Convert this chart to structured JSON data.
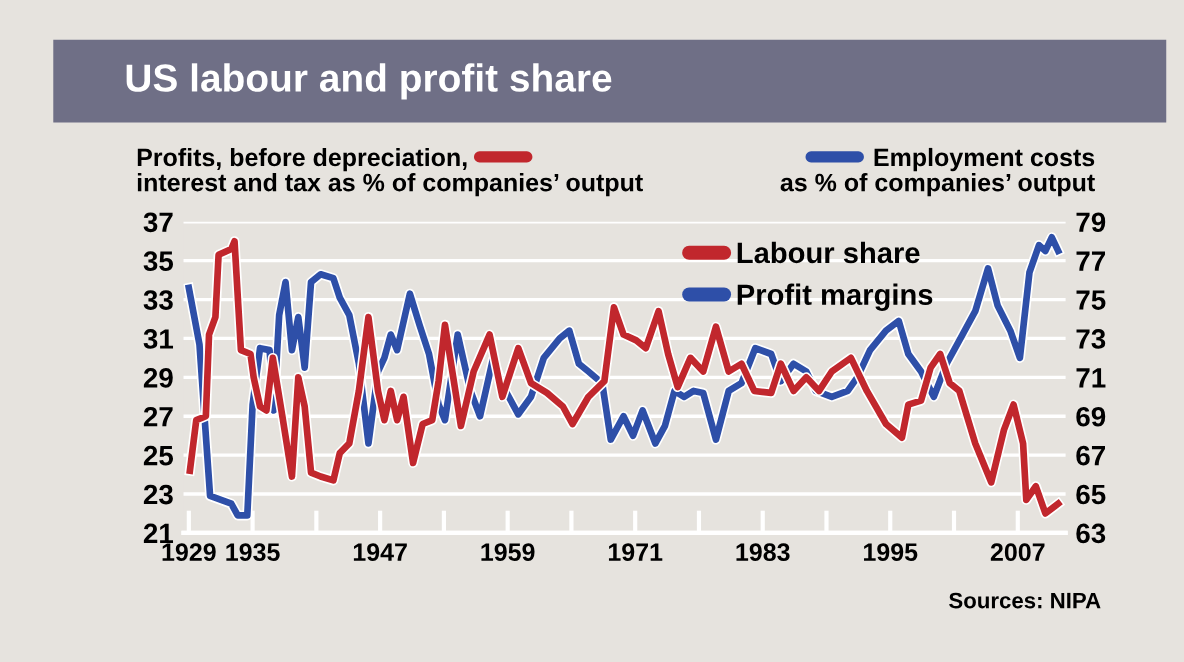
{
  "chart_data": {
    "type": "line",
    "title": "US labour and profit share",
    "ylabel": "Profits, before depreciation,\ninterest and tax as % of companies’ output",
    "y2label": "Employment costs\nas % of companies’ output",
    "annotations": [
      "Sources: NIPA"
    ],
    "xlim": [
      1928.5,
      2011.5
    ],
    "xticks": [
      1929,
      1935,
      {
        "value": 1941,
        "label": null
      },
      1947,
      {
        "value": 1953,
        "label": null
      },
      1959,
      {
        "value": 1965,
        "label": null
      },
      1971,
      {
        "value": 1977,
        "label": null
      },
      1983,
      {
        "value": 1989,
        "label": null
      },
      1995,
      {
        "value": 2001,
        "label": null
      },
      2007
    ],
    "ylim": [
      21,
      37
    ],
    "yticks": [
      21,
      23,
      25,
      27,
      29,
      31,
      33,
      35,
      37
    ],
    "y2lim": [
      63,
      79
    ],
    "y2ticks": [
      63,
      65,
      67,
      69,
      71,
      73,
      75,
      77,
      79
    ],
    "grid": "y",
    "legend": "top right",
    "line_style": "solid",
    "series": [
      {
        "name": "Labour share",
        "color": "#c1272d",
        "axis": "y2",
        "x": [
          1929.1,
          1929.7,
          1930.6,
          1930.9,
          1931.5,
          1931.8,
          1933,
          1933.3,
          1933.9,
          1934.8,
          1935.1,
          1935.7,
          1936.3,
          1936.9,
          1937.8,
          1938.7,
          1939.3,
          1939.9,
          1940.5,
          1941.4,
          1942.6,
          1943.2,
          1944.1,
          1945,
          1945.9,
          1946.8,
          1947.4,
          1948,
          1948.6,
          1949.2,
          1950.1,
          1951,
          1951.9,
          1952.5,
          1953.1,
          1954.6,
          1955.8,
          1957.3,
          1958.5,
          1960,
          1961.2,
          1962.7,
          1964.2,
          1965.1,
          1966.6,
          1968.1,
          1969,
          1969.9,
          1971.1,
          1972,
          1973.2,
          1974.1,
          1975,
          1976.2,
          1977.4,
          1978.6,
          1979.8,
          1981,
          1982.2,
          1983.8,
          1984.7,
          1985.9,
          1987.1,
          1988.3,
          1989.5,
          1991.3,
          1992.8,
          1994.6,
          1996.1,
          1996.7,
          1997.9,
          1998.8,
          1999.7,
          2000.6,
          2001.5,
          2003,
          2004.5,
          2005.7,
          2006.6,
          2007.5,
          2007.8,
          2008.7,
          2009.6,
          2010.8
        ],
        "values": [
          66.2,
          68.8,
          69,
          73.2,
          74.1,
          77.3,
          77.6,
          78,
          72.4,
          72.2,
          71,
          69.5,
          69.3,
          72,
          69,
          65.9,
          71,
          69.5,
          66.1,
          65.9,
          65.7,
          67.1,
          67.6,
          70.3,
          74.1,
          70.3,
          68.8,
          70.3,
          68.8,
          70,
          66.6,
          68.6,
          68.8,
          70.8,
          73.7,
          68.5,
          71.3,
          73.2,
          70,
          72.5,
          70.7,
          70.2,
          69.5,
          68.6,
          70,
          70.8,
          74.6,
          73.2,
          72.9,
          72.5,
          74.4,
          72.2,
          70.5,
          72,
          71.3,
          73.6,
          71.3,
          71.7,
          70.3,
          70.2,
          71.7,
          70.3,
          71,
          70.3,
          71.3,
          72,
          70.3,
          68.6,
          67.9,
          69.6,
          69.8,
          71.5,
          72.2,
          70.7,
          70.3,
          67.6,
          65.6,
          68.3,
          69.6,
          67.6,
          64.7,
          65.4,
          64,
          64.5
        ]
      },
      {
        "name": "Profit margins",
        "color": "#2e4fa8",
        "x": [
          1929,
          1930,
          1931,
          1933,
          1933.6,
          1934.5,
          1935,
          1935.7,
          1936.6,
          1937,
          1937.5,
          1938.1,
          1938.7,
          1939.3,
          1939.9,
          1940.5,
          1941.4,
          1942.6,
          1943.2,
          1944.1,
          1945,
          1945.9,
          1946.8,
          1947.4,
          1948,
          1948.6,
          1949.8,
          1950.7,
          1951.6,
          1952.5,
          1953.1,
          1954.3,
          1955.5,
          1956.4,
          1957.6,
          1958.8,
          1960,
          1961.2,
          1962.4,
          1963.9,
          1964.8,
          1965.7,
          1966.6,
          1967.9,
          1968.7,
          1969.9,
          1970.8,
          1971.7,
          1972.9,
          1973.8,
          1974.7,
          1975.6,
          1976.5,
          1977.4,
          1978.6,
          1979.8,
          1981,
          1982.3,
          1983.8,
          1984.7,
          1985.9,
          1987.1,
          1988,
          1989.5,
          1991,
          1991.9,
          1993.1,
          1994.6,
          1995.8,
          1996.7,
          1997.9,
          1999.1,
          2000.3,
          2001.8,
          2003,
          2004.2,
          2005.1,
          2006.3,
          2007.2,
          2008.1,
          2009,
          2009.6,
          2010.2,
          2010.8
        ],
        "values": [
          33.6,
          30.7,
          22.9,
          22.5,
          21.9,
          21.9,
          27.6,
          30.5,
          30.4,
          27.3,
          32.2,
          33.9,
          30.4,
          32.1,
          29.5,
          33.9,
          34.3,
          34.1,
          33.1,
          32.2,
          29.7,
          25.6,
          29.3,
          30,
          31.2,
          30.4,
          33.3,
          31.7,
          30.2,
          27.6,
          26.8,
          31.2,
          28.3,
          27,
          29.9,
          28.3,
          27.1,
          28,
          30,
          31,
          31.4,
          29.7,
          29.3,
          28.7,
          25.8,
          27,
          26,
          27.3,
          25.6,
          26.5,
          28.3,
          28,
          28.3,
          28.2,
          25.8,
          28.3,
          28.7,
          30.5,
          30.2,
          28.8,
          29.7,
          29.3,
          28.3,
          28,
          28.3,
          29,
          30.4,
          31.4,
          31.9,
          30.2,
          29.3,
          28,
          29.7,
          31.2,
          32.4,
          34.6,
          32.7,
          31.4,
          30,
          34.4,
          35.8,
          35.5,
          36.2,
          35.5
        ]
      }
    ]
  }
}
